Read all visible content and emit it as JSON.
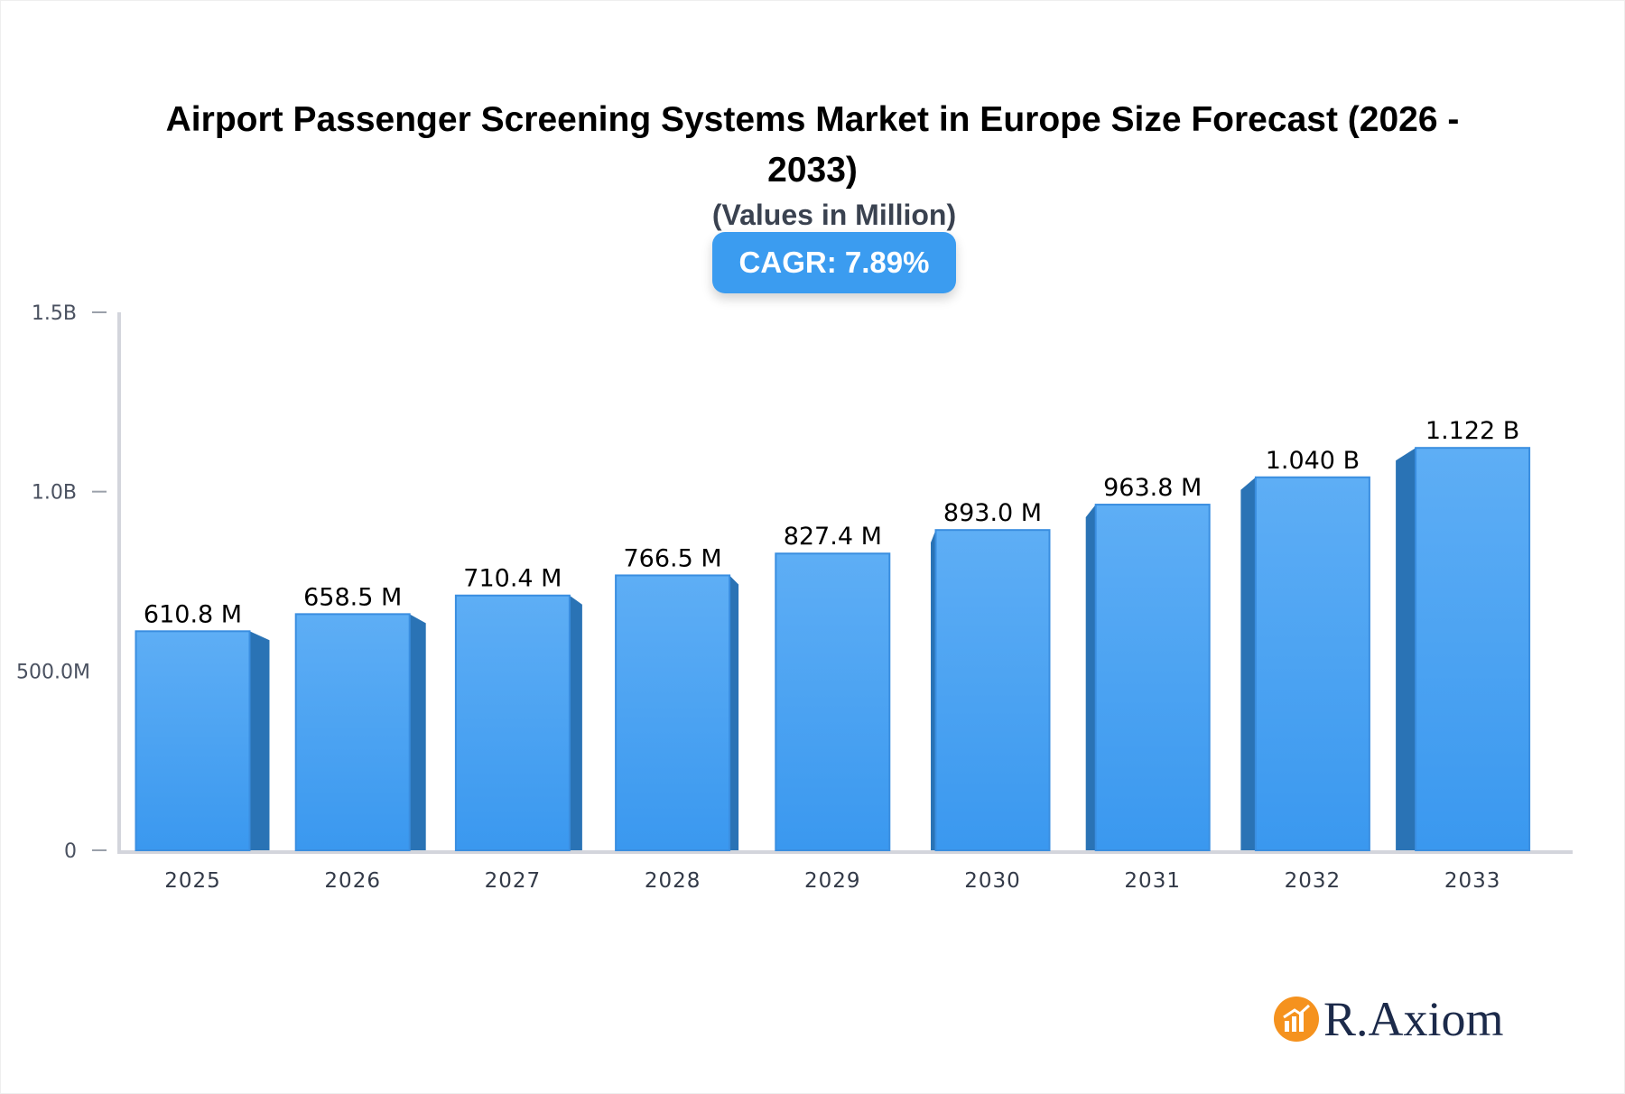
{
  "chart_data": {
    "type": "bar",
    "title": "Airport Passenger Screening Systems Market in Europe Size Forecast (2026 - 2033)",
    "subtitle": "(Values in Million)",
    "badge": "CAGR: 7.89%",
    "categories": [
      "2025",
      "2026",
      "2027",
      "2028",
      "2029",
      "2030",
      "2031",
      "2032",
      "2033"
    ],
    "values": [
      610.8,
      658.5,
      710.4,
      766.5,
      827.4,
      893.0,
      963.8,
      1040,
      1122
    ],
    "data_labels": [
      "610.8 M",
      "658.5 M",
      "710.4 M",
      "766.5 M",
      "827.4 M",
      "893.0 M",
      "963.8 M",
      "1.040 B",
      "1.122 B"
    ],
    "yticks": [
      {
        "v": 0,
        "label": "0"
      },
      {
        "v": 500,
        "label": "500.0M"
      },
      {
        "v": 1000,
        "label": "1.0B"
      },
      {
        "v": 1500,
        "label": "1.5B"
      }
    ],
    "ylim": [
      0,
      1500
    ],
    "grid": false,
    "colors": {
      "bar_top": "#5eaef5",
      "bar_bottom": "#3a98ef",
      "bar_side": "#2a73b5",
      "axis": "#d3d5dc"
    }
  },
  "brand": {
    "name": "R.Axiom",
    "icon": "bar-chart-logo-icon",
    "color": "#f5921e"
  }
}
